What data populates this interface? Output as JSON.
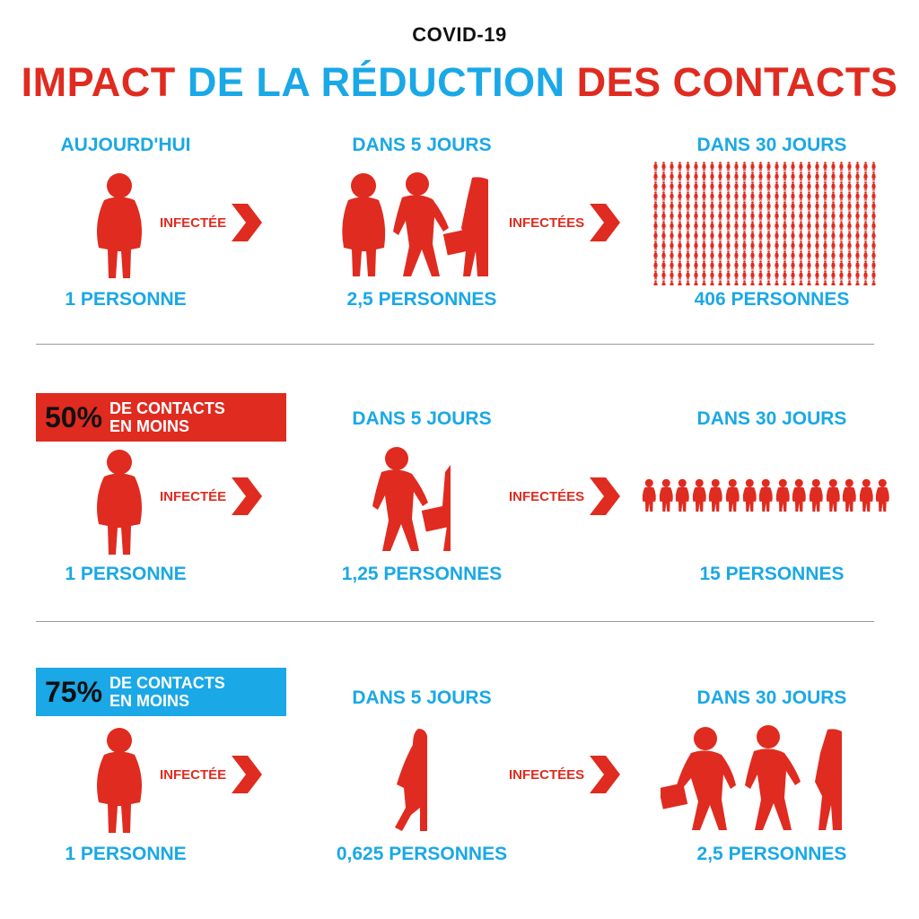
{
  "kicker": "COVID-19",
  "title": {
    "part1": "IMPACT",
    "part2": "DE LA RÉDUCTION",
    "part3": "DES CONTACTS"
  },
  "colors": {
    "red": "#e02b20",
    "blue": "#1aa8e6",
    "dark": "#111111"
  },
  "rows": [
    {
      "start_label": "AUJOURD'HUI",
      "start_count": "1 PERSONNE",
      "arrow1": "INFECTÉE",
      "day5_label": "DANS 5 JOURS",
      "day5_count": "2,5 PERSONNES",
      "day5_people": 2.5,
      "arrow2": "INFECTÉES",
      "day30_label": "DANS 30 JOURS",
      "day30_count": "406 PERSONNES",
      "day30_people": 406
    },
    {
      "badge_pct": "50%",
      "badge_line1": "DE CONTACTS",
      "badge_line2": "EN MOINS",
      "start_count": "1 PERSONNE",
      "arrow1": "INFECTÉE",
      "day5_label": "DANS 5 JOURS",
      "day5_count": "1,25 PERSONNES",
      "day5_people": 1.25,
      "arrow2": "INFECTÉES",
      "day30_label": "DANS 30 JOURS",
      "day30_count": "15 PERSONNES",
      "day30_people": 15
    },
    {
      "badge_pct": "75%",
      "badge_line1": "DE CONTACTS",
      "badge_line2": "EN MOINS",
      "start_count": "1 PERSONNE",
      "arrow1": "INFECTÉE",
      "day5_label": "DANS 5 JOURS",
      "day5_count": "0,625 PERSONNES",
      "day5_people": 0.625,
      "arrow2": "INFECTÉES",
      "day30_label": "DANS 30 JOURS",
      "day30_count": "2,5 PERSONNES",
      "day30_people": 2.5
    }
  ]
}
